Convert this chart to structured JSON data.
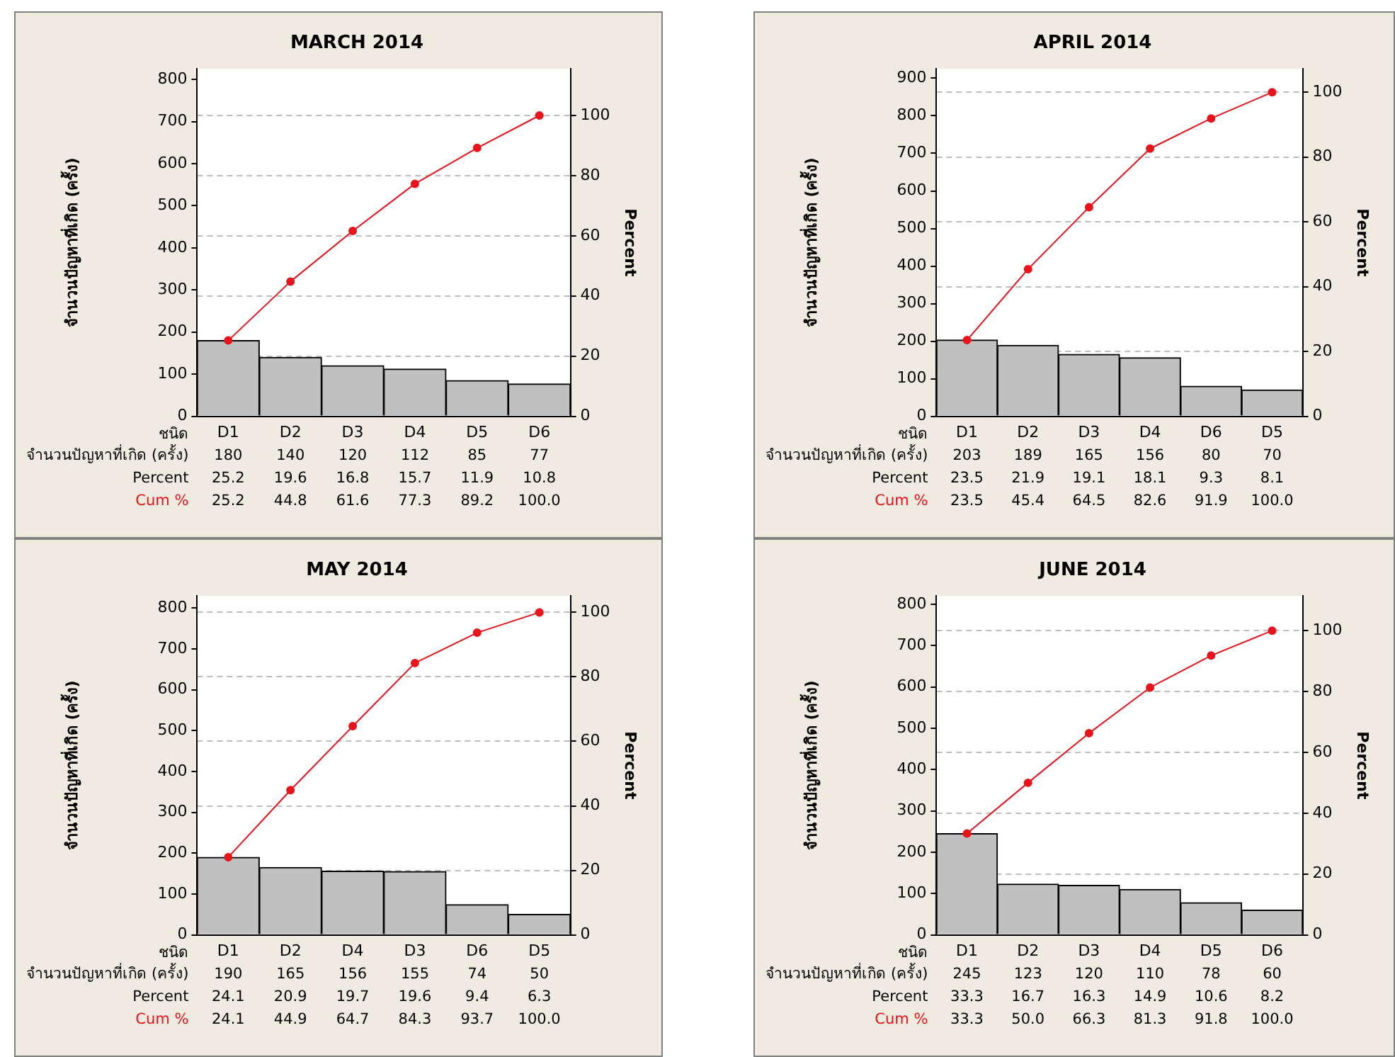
{
  "chart_data": [
    {
      "type": "bar",
      "title": "MARCH 2014",
      "xlabel": "ชนิด",
      "ylabel": "จำนวนปัญหาที่เกิด (ครั้ง)",
      "y2label": "Percent",
      "categories": [
        "D1",
        "D2",
        "D3",
        "D4",
        "D5",
        "D6"
      ],
      "series": [
        {
          "name": "จำนวนปัญหาที่เกิด (ครั้ง)",
          "color": "#c0c0c0",
          "values": [
            180,
            140,
            120,
            112,
            85,
            77
          ],
          "value_labels": [
            "180",
            "140",
            "120",
            "112",
            "85",
            "77"
          ]
        },
        {
          "name": "Cum %",
          "type": "line",
          "axis": "y2",
          "color": "#e8141c",
          "values": [
            25.2,
            44.8,
            61.6,
            77.3,
            89.2,
            100.0
          ],
          "value_labels": [
            "25.2",
            "44.8",
            "61.6",
            "77.3",
            "89.2",
            "100.0"
          ]
        }
      ],
      "annotations": [
        "Percent",
        "25.2",
        "19.6",
        "16.8",
        "15.7",
        "11.9",
        "10.8"
      ],
      "ylim": [
        0,
        825
      ],
      "yticks": [
        0,
        100,
        200,
        300,
        400,
        500,
        600,
        700,
        800
      ],
      "y2lim": [
        0,
        115.5
      ],
      "y2ticks": [
        0,
        20,
        40,
        60,
        80,
        100
      ],
      "grid": "y",
      "marker": "circle"
    },
    {
      "type": "bar",
      "title": "APRIL 2014",
      "xlabel": "ชนิด",
      "ylabel": "จำนวนปัญหาที่เกิด (ครั้ง)",
      "y2label": "Percent",
      "categories": [
        "D1",
        "D2",
        "D3",
        "D4",
        "D6",
        "D5"
      ],
      "series": [
        {
          "name": "จำนวนปัญหาที่เกิด (ครั้ง)",
          "color": "#c0c0c0",
          "values": [
            203,
            189,
            165,
            156,
            80,
            70
          ],
          "value_labels": [
            "203",
            "189",
            "165",
            "156",
            "80",
            "70"
          ]
        },
        {
          "name": "Cum %",
          "type": "line",
          "axis": "y2",
          "color": "#e8141c",
          "values": [
            23.5,
            45.4,
            64.5,
            82.6,
            91.9,
            100.0
          ],
          "value_labels": [
            "23.5",
            "45.4",
            "64.5",
            "82.6",
            "91.9",
            "100.0"
          ]
        }
      ],
      "annotations": [
        "Percent",
        "23.5",
        "21.9",
        "19.1",
        "18.1",
        "9.3",
        "8.1"
      ],
      "ylim": [
        0,
        925
      ],
      "yticks": [
        0,
        100,
        200,
        300,
        400,
        500,
        600,
        700,
        800,
        900
      ],
      "y2lim": [
        0,
        107.2
      ],
      "y2ticks": [
        0,
        20,
        40,
        60,
        80,
        100
      ],
      "grid": "y",
      "marker": "circle"
    },
    {
      "type": "bar",
      "title": "MAY 2014",
      "xlabel": "ชนิด",
      "ylabel": "จำนวนปัญหาที่เกิด (ครั้ง)",
      "y2label": "Percent",
      "categories": [
        "D1",
        "D2",
        "D4",
        "D3",
        "D6",
        "D5"
      ],
      "series": [
        {
          "name": "จำนวนปัญหาที่เกิด (ครั้ง)",
          "color": "#c0c0c0",
          "values": [
            190,
            165,
            156,
            155,
            74,
            50
          ],
          "value_labels": [
            "190",
            "165",
            "156",
            "155",
            "74",
            "50"
          ]
        },
        {
          "name": "Cum %",
          "type": "line",
          "axis": "y2",
          "color": "#e8141c",
          "values": [
            24.1,
            44.9,
            64.7,
            84.3,
            93.7,
            100.0
          ],
          "value_labels": [
            "24.1",
            "44.9",
            "64.7",
            "84.3",
            "93.7",
            "100.0"
          ]
        }
      ],
      "annotations": [
        "Percent",
        "24.1",
        "20.9",
        "19.7",
        "19.6",
        "9.4",
        "6.3"
      ],
      "ylim": [
        0,
        830
      ],
      "yticks": [
        0,
        100,
        200,
        300,
        400,
        500,
        600,
        700,
        800
      ],
      "y2lim": [
        0,
        105.1
      ],
      "y2ticks": [
        0,
        20,
        40,
        60,
        80,
        100
      ],
      "grid": "y",
      "marker": "circle"
    },
    {
      "type": "bar",
      "title": "JUNE 2014",
      "xlabel": "ชนิด",
      "ylabel": "จำนวนปัญหาที่เกิด (ครั้ง)",
      "y2label": "Percent",
      "categories": [
        "D1",
        "D2",
        "D3",
        "D4",
        "D5",
        "D6"
      ],
      "series": [
        {
          "name": "จำนวนปัญหาที่เกิด (ครั้ง)",
          "color": "#c0c0c0",
          "values": [
            245,
            123,
            120,
            110,
            78,
            60
          ],
          "value_labels": [
            "245",
            "123",
            "120",
            "110",
            "78",
            "60"
          ]
        },
        {
          "name": "Cum %",
          "type": "line",
          "axis": "y2",
          "color": "#e8141c",
          "values": [
            33.3,
            50.0,
            66.3,
            81.3,
            91.8,
            100.0
          ],
          "value_labels": [
            "33.3",
            "50.0",
            "66.3",
            "81.3",
            "91.8",
            "100.0"
          ]
        }
      ],
      "annotations": [
        "Percent",
        "33.3",
        "16.7",
        "16.3",
        "14.9",
        "10.6",
        "8.2"
      ],
      "ylim": [
        0,
        820
      ],
      "yticks": [
        0,
        100,
        200,
        300,
        400,
        500,
        600,
        700,
        800
      ],
      "y2lim": [
        0,
        111.4
      ],
      "y2ticks": [
        0,
        20,
        40,
        60,
        80,
        100
      ],
      "grid": "y",
      "marker": "circle"
    }
  ]
}
